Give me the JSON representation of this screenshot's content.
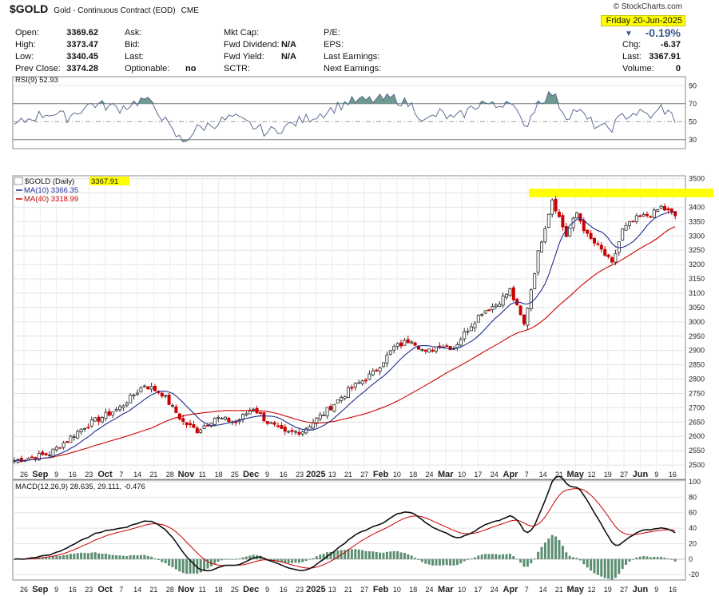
{
  "header": {
    "symbol": "$GOLD",
    "description": "Gold - Continuous Contract (EOD)",
    "exchange": "CME",
    "watermark": "© StockCharts.com",
    "date": "Friday  20-Jun-2025",
    "change_pct": "-0.19%",
    "col1": [
      [
        "Open:",
        "3369.62"
      ],
      [
        "High:",
        "3373.47"
      ],
      [
        "Low:",
        "3340.45"
      ],
      [
        "Prev Close:",
        "3374.28"
      ]
    ],
    "col2": [
      [
        "Ask:",
        ""
      ],
      [
        "Bid:",
        ""
      ],
      [
        "Last:",
        ""
      ],
      [
        "Optionable:",
        "no"
      ]
    ],
    "col3": [
      [
        "Mkt Cap:",
        ""
      ],
      [
        "Fwd Dividend:",
        "N/A"
      ],
      [
        "Fwd Yield:",
        "N/A"
      ],
      [
        "SCTR:",
        ""
      ]
    ],
    "col4": [
      [
        "P/E:",
        ""
      ],
      [
        "EPS:",
        ""
      ],
      [
        "Last Earnings:",
        ""
      ],
      [
        "Next Earnings:",
        ""
      ]
    ],
    "col5": [
      [
        "Chg:",
        "-6.37"
      ],
      [
        "Last:",
        "3367.91"
      ],
      [
        "Volume:",
        "0"
      ]
    ]
  },
  "colors": {
    "up": "#2b2b2b",
    "down": "#cc0000",
    "ma10": "#1f2e8f",
    "ma40": "#cc0000",
    "highlight": "#ffff00",
    "rsi_fill": "#6e9a8f",
    "rsi_line": "#5b6c94",
    "macd_hist": "#5c8f72"
  },
  "chart_data": [
    {
      "type": "candlestick",
      "title": "$GOLD (Daily)",
      "last_label": "3367.91",
      "ylim": [
        2450,
        3510
      ],
      "yticks": [
        2500,
        2550,
        2600,
        2650,
        2700,
        2750,
        2800,
        2850,
        2900,
        2950,
        3000,
        3050,
        3100,
        3150,
        3200,
        3250,
        3300,
        3350,
        3400,
        3450,
        3500
      ],
      "highlight_label": "3450",
      "highlight_range": [
        3435,
        3465
      ],
      "series": [
        {
          "name": "MA(10) 3366.35"
        },
        {
          "name": "MA(40) 3318.99"
        }
      ],
      "x_labels": [
        "26",
        "Sep",
        "9",
        "16",
        "23",
        "Oct",
        "7",
        "14",
        "21",
        "28",
        "Nov",
        "11",
        "18",
        "25",
        "Dec",
        "9",
        "16",
        "23",
        "2025",
        "13",
        "21",
        "27",
        "Feb",
        "10",
        "18",
        "24",
        "Mar",
        "10",
        "17",
        "24",
        "Apr",
        "7",
        "14",
        "21",
        "May",
        "12",
        "19",
        "27",
        "Jun",
        "9",
        "16"
      ],
      "bold_labels": [
        "Sep",
        "Oct",
        "Nov",
        "Dec",
        "2025",
        "Feb",
        "Mar",
        "Apr",
        "May",
        "Jun"
      ],
      "close_anchors": [
        [
          0,
          2515
        ],
        [
          10,
          2540
        ],
        [
          20,
          2635
        ],
        [
          30,
          2700
        ],
        [
          37,
          2780
        ],
        [
          42,
          2750
        ],
        [
          48,
          2650
        ],
        [
          52,
          2620
        ],
        [
          57,
          2665
        ],
        [
          63,
          2650
        ],
        [
          68,
          2700
        ],
        [
          72,
          2650
        ],
        [
          77,
          2610
        ],
        [
          82,
          2620
        ],
        [
          88,
          2680
        ],
        [
          95,
          2760
        ],
        [
          102,
          2820
        ],
        [
          108,
          2910
        ],
        [
          113,
          2940
        ],
        [
          117,
          2890
        ],
        [
          121,
          2920
        ],
        [
          125,
          2910
        ],
        [
          129,
          2975
        ],
        [
          133,
          3035
        ],
        [
          137,
          3060
        ],
        [
          141,
          3110
        ],
        [
          145,
          2990
        ],
        [
          149,
          3240
        ],
        [
          153,
          3430
        ],
        [
          157,
          3300
        ],
        [
          160,
          3380
        ],
        [
          163,
          3300
        ],
        [
          167,
          3250
        ],
        [
          170,
          3200
        ],
        [
          173,
          3320
        ],
        [
          177,
          3360
        ],
        [
          182,
          3380
        ],
        [
          184,
          3400
        ],
        [
          188,
          3370
        ]
      ]
    },
    {
      "type": "line",
      "title": "RSI(9) 52.93",
      "ylim": [
        20,
        100
      ],
      "yticks": [
        30,
        50,
        70,
        90
      ],
      "bands": [
        30,
        70
      ],
      "anchors": [
        [
          0,
          45
        ],
        [
          5,
          55
        ],
        [
          10,
          60
        ],
        [
          15,
          55
        ],
        [
          22,
          70
        ],
        [
          30,
          65
        ],
        [
          37,
          75
        ],
        [
          41,
          62
        ],
        [
          45,
          38
        ],
        [
          48,
          28
        ],
        [
          52,
          42
        ],
        [
          57,
          48
        ],
        [
          62,
          55
        ],
        [
          66,
          48
        ],
        [
          72,
          38
        ],
        [
          77,
          44
        ],
        [
          82,
          52
        ],
        [
          88,
          60
        ],
        [
          95,
          72
        ],
        [
          102,
          74
        ],
        [
          108,
          76
        ],
        [
          113,
          68
        ],
        [
          117,
          50
        ],
        [
          121,
          60
        ],
        [
          125,
          52
        ],
        [
          129,
          62
        ],
        [
          133,
          72
        ],
        [
          137,
          66
        ],
        [
          141,
          76
        ],
        [
          145,
          42
        ],
        [
          149,
          72
        ],
        [
          153,
          82
        ],
        [
          157,
          56
        ],
        [
          160,
          64
        ],
        [
          163,
          52
        ],
        [
          167,
          42
        ],
        [
          170,
          44
        ],
        [
          173,
          56
        ],
        [
          177,
          60
        ],
        [
          182,
          56
        ],
        [
          184,
          66
        ],
        [
          188,
          53
        ]
      ]
    },
    {
      "type": "line",
      "title": "MACD(12,26,9) 28.635, 29.111, -0.476",
      "ylim": [
        -27,
        102
      ],
      "yticks": [
        -20,
        0,
        20,
        40,
        60,
        80,
        100
      ],
      "series": [
        {
          "name": "MACD 28.635"
        },
        {
          "name": "Signal 29.111"
        },
        {
          "name": "Histogram -0.476"
        }
      ]
    }
  ]
}
